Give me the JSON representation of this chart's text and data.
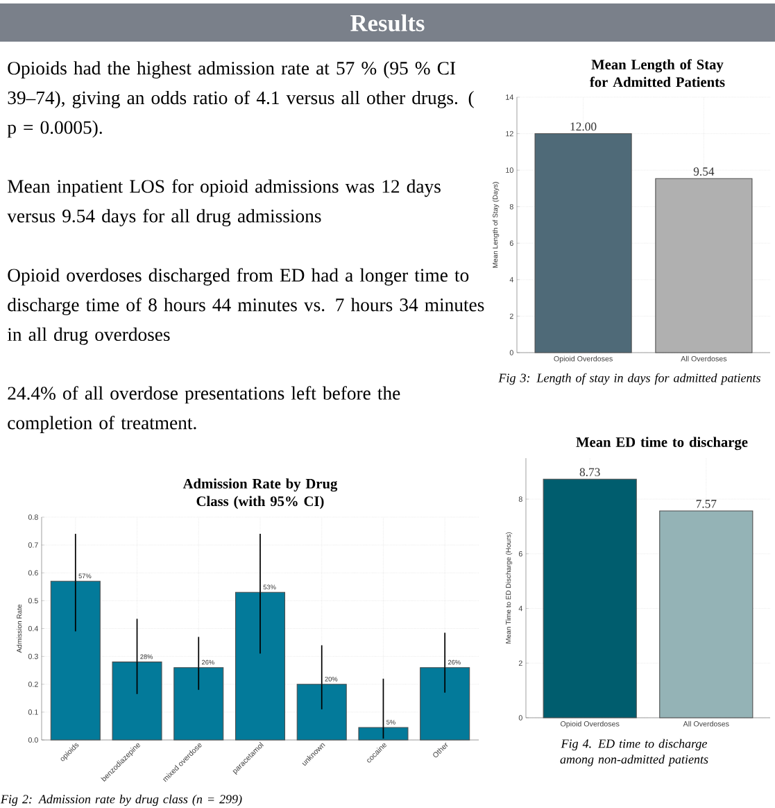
{
  "chart_data": [
    {
      "type": "other",
      "title": "Results",
      "annotations": [
        "Opioids had the highest admission rate at 57 % (95 % CI 39–74), giving an odds ratio of 4.1 versus all other drugs. ( p = 0.0005).",
        "Mean inpatient LOS for opioid admissions was 12 days versus 9.54 days for all drug admissions",
        "Opioid overdoses discharged from ED had a longer time to discharge time of 8 hours 44 minutes vs. 7 hours 34 minutes in all drug overdoses",
        "24.4% of all overdose presentations left before the completion of treatment."
      ]
    },
    {
      "type": "bar",
      "title": "Mean Length of Stay for Admitted Patients",
      "ylabel": "Mean Length of Stay (Days)",
      "categories": [
        "Opioid Overdoses",
        "All Overdoses"
      ],
      "values": [
        12,
        9.54
      ],
      "value_labels": [
        "12.00",
        "9.54"
      ],
      "colors": [
        "#4f6a78",
        "#b0b0b0"
      ],
      "ylim": [
        0,
        14
      ],
      "yticks": [
        0,
        2,
        4,
        6,
        8,
        10,
        12,
        14
      ],
      "grid": true,
      "annotations": [
        "Fig 3:  Length of stay in days for admitted patients"
      ]
    },
    {
      "type": "bar",
      "title": "Admission Rate by Drug Class (with 95% CI)",
      "ylabel": "Admission Rate",
      "categories": [
        "opioids",
        "benzodiazepine",
        "mixed overdose",
        "paracetamol",
        "unknown",
        "cocaine",
        "Other"
      ],
      "values": [
        0.57,
        0.28,
        0.26,
        0.53,
        0.2,
        0.045,
        0.26
      ],
      "value_labels": [
        "57%",
        "28%",
        "26%",
        "53%",
        "20%",
        "5%",
        "26%"
      ],
      "errors": [
        [
          0.39,
          0.74
        ],
        [
          0.165,
          0.435
        ],
        [
          0.18,
          0.37
        ],
        [
          0.31,
          0.74
        ],
        [
          0.11,
          0.34
        ],
        [
          0.005,
          0.22
        ],
        [
          0.17,
          0.385
        ]
      ],
      "colors": [
        "#037a9a",
        "#037a9a",
        "#037a9a",
        "#037a9a",
        "#037a9a",
        "#037a9a",
        "#037a9a"
      ],
      "ylim": [
        0,
        0.8
      ],
      "yticks": [
        {
          "value": 0,
          "label": "0.0"
        },
        {
          "value": 0.1,
          "label": "0.1"
        },
        {
          "value": 0.2,
          "label": "0.2"
        },
        {
          "value": 0.3,
          "label": "0.3"
        },
        {
          "value": 0.4,
          "label": "0.4"
        },
        {
          "value": 0.5,
          "label": "0.5"
        },
        {
          "value": 0.6,
          "label": "0.6"
        },
        {
          "value": 0.7,
          "label": "0.7"
        },
        {
          "value": 0.8,
          "label": "0.8"
        }
      ],
      "grid": true,
      "annotations": [
        "Fig 2: Admission rate by drug class (n = 299)"
      ]
    },
    {
      "type": "bar",
      "title": "Mean ED time to discharge",
      "ylabel": "Mean Time to ED Discharge (Hours)",
      "categories": [
        "Opioid Overdoses",
        "All Overdoses"
      ],
      "values": [
        8.73,
        7.57
      ],
      "value_labels": [
        "8.73",
        "7.57"
      ],
      "colors": [
        "#005d6e",
        "#94b3b6"
      ],
      "ylim": [
        0,
        9.5
      ],
      "yticks": [
        0,
        2,
        4,
        6,
        8
      ],
      "grid": true,
      "annotations": [
        "Fig 4. ED time to discharge among non-admitted patients"
      ]
    }
  ]
}
